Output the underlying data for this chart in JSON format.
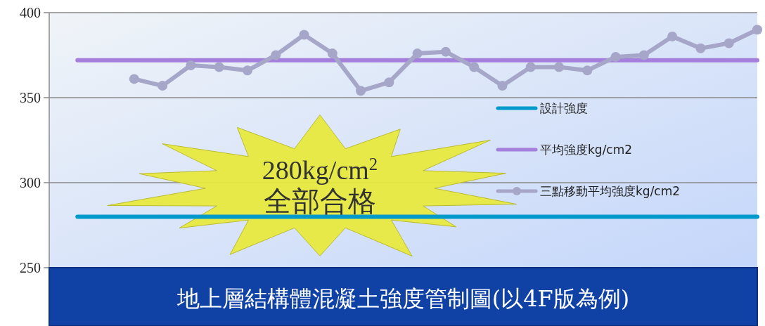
{
  "chart_data": {
    "type": "line",
    "title": "地上層結構體混凝土強度管制圖(以4F版為例)",
    "annotations": [
      "280kg/cm$^{2}$",
      "全部合格"
    ],
    "categories": [
      null,
      null,
      null,
      null,
      null,
      null,
      null,
      null,
      null,
      null,
      null,
      null,
      null,
      null,
      null,
      null,
      null,
      null,
      null,
      null,
      null,
      null,
      null,
      null,
      null,
      null
    ],
    "ylim": [
      250,
      400
    ],
    "yticks": [
      250,
      300,
      350,
      400
    ],
    "tick_labels": "y",
    "grid": "y",
    "legend": "right",
    "line_style": "solid",
    "series": [
      {
        "name": "設計強度",
        "color": "#0099cc",
        "marker": "none",
        "values": [
          null,
          280,
          280,
          280,
          280,
          280,
          280,
          280,
          280,
          280,
          280,
          280,
          280,
          280,
          280,
          280,
          280,
          280,
          280,
          280,
          280,
          280,
          280,
          280,
          280,
          280
        ]
      },
      {
        "name": "平均強度kg/cm2",
        "color": "#a57fdc",
        "marker": "none",
        "values": [
          null,
          372,
          372,
          372,
          372,
          372,
          372,
          372,
          372,
          372,
          372,
          372,
          372,
          372,
          372,
          372,
          372,
          372,
          372,
          372,
          372,
          372,
          372,
          372,
          372,
          372
        ]
      },
      {
        "name": "三點移動平均強度kg/cm2",
        "color": "#a6a6c8",
        "marker": "circle",
        "values": [
          null,
          null,
          null,
          361,
          357,
          369,
          368,
          366,
          375,
          387,
          376,
          354,
          359,
          376,
          377,
          368,
          357,
          368,
          368,
          366,
          374,
          375,
          386,
          379,
          382,
          390
        ]
      }
    ]
  }
}
